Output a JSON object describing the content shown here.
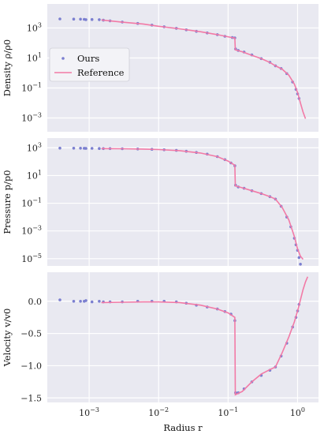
{
  "chart_data": {
    "type": "scatter",
    "xlabel": "Radius r",
    "x_scale": "log",
    "xlim": [
      0.00025,
      2.0
    ],
    "x_tick_labels": [
      "10^-3",
      "10^-2",
      "10^-1",
      "10^0"
    ],
    "legend": {
      "placement": "upper-left of first panel",
      "entries": [
        {
          "name": "Ours",
          "style": "dots",
          "color": "#7b7fd0"
        },
        {
          "name": "Reference",
          "style": "line",
          "color": "#f27aa6"
        }
      ]
    },
    "colors": {
      "ours": "#7b7fd0",
      "reference": "#f27aa6",
      "panel_bg": "#e9e9f1",
      "grid": "#ffffff"
    },
    "panels": [
      {
        "ylabel": "Density ρ/ρ0",
        "y_scale": "log",
        "ylim": [
          0.00012,
          40000
        ],
        "y_ticks": [
          0.001,
          0.1,
          10,
          1000
        ],
        "y_tick_labels": [
          "10^-3",
          "10^-1",
          "10^1",
          "10^3"
        ],
        "series": [
          {
            "name": "Ours",
            "points": [
              [
                0.00038,
                4000
              ],
              [
                0.0006,
                3900
              ],
              [
                0.00075,
                3850
              ],
              [
                0.00085,
                3750
              ],
              [
                0.0009,
                3600
              ],
              [
                0.0011,
                3700
              ],
              [
                0.0014,
                3600
              ],
              [
                0.0016,
                3300
              ],
              [
                0.002,
                3000
              ],
              [
                0.003,
                2500
              ],
              [
                0.005,
                2000
              ],
              [
                0.008,
                1550
              ],
              [
                0.012,
                1200
              ],
              [
                0.018,
                950
              ],
              [
                0.025,
                750
              ],
              [
                0.035,
                600
              ],
              [
                0.05,
                470
              ],
              [
                0.07,
                360
              ],
              [
                0.09,
                280
              ],
              [
                0.115,
                230
              ],
              [
                0.125,
                220
              ],
              [
                0.128,
                40
              ],
              [
                0.14,
                32
              ],
              [
                0.17,
                25
              ],
              [
                0.22,
                16
              ],
              [
                0.3,
                9
              ],
              [
                0.4,
                5.2
              ],
              [
                0.48,
                3.0
              ],
              [
                0.58,
                2.0
              ],
              [
                0.7,
                0.9
              ],
              [
                0.85,
                0.25
              ],
              [
                0.95,
                0.08
              ],
              [
                1.0,
                0.04
              ],
              [
                1.05,
                0.02
              ]
            ]
          },
          {
            "name": "Reference",
            "points": [
              [
                0.0015,
                3400
              ],
              [
                0.003,
                2450
              ],
              [
                0.006,
                1850
              ],
              [
                0.01,
                1300
              ],
              [
                0.02,
                880
              ],
              [
                0.04,
                560
              ],
              [
                0.07,
                360
              ],
              [
                0.1,
                260
              ],
              [
                0.125,
                210
              ],
              [
                0.127,
                35
              ],
              [
                0.16,
                26
              ],
              [
                0.22,
                15
              ],
              [
                0.3,
                9
              ],
              [
                0.4,
                5
              ],
              [
                0.48,
                3
              ],
              [
                0.6,
                1.8
              ],
              [
                0.75,
                0.7
              ],
              [
                0.9,
                0.18
              ],
              [
                1.0,
                0.05
              ],
              [
                1.1,
                0.01
              ],
              [
                1.2,
                0.0025
              ],
              [
                1.3,
                0.0009
              ]
            ]
          }
        ]
      },
      {
        "ylabel": "Pressure p/p0",
        "y_scale": "log",
        "ylim": [
          3e-06,
          5000
        ],
        "y_ticks": [
          1e-05,
          0.001,
          0.1,
          10,
          1000
        ],
        "y_tick_labels": [
          "10^-5",
          "10^-3",
          "10^-1",
          "10^1",
          "10^3"
        ],
        "series": [
          {
            "name": "Ours",
            "points": [
              [
                0.00038,
                950
              ],
              [
                0.0006,
                940
              ],
              [
                0.00075,
                930
              ],
              [
                0.00085,
                920
              ],
              [
                0.0009,
                900
              ],
              [
                0.0011,
                910
              ],
              [
                0.0014,
                890
              ],
              [
                0.0016,
                880
              ],
              [
                0.002,
                870
              ],
              [
                0.003,
                850
              ],
              [
                0.005,
                820
              ],
              [
                0.008,
                780
              ],
              [
                0.012,
                720
              ],
              [
                0.018,
                650
              ],
              [
                0.025,
                560
              ],
              [
                0.035,
                460
              ],
              [
                0.05,
                350
              ],
              [
                0.07,
                230
              ],
              [
                0.09,
                140
              ],
              [
                0.11,
                80
              ],
              [
                0.125,
                50
              ],
              [
                0.128,
                2.0
              ],
              [
                0.14,
                1.5
              ],
              [
                0.17,
                1.2
              ],
              [
                0.22,
                0.8
              ],
              [
                0.3,
                0.5
              ],
              [
                0.4,
                0.3
              ],
              [
                0.48,
                0.2
              ],
              [
                0.58,
                0.06
              ],
              [
                0.7,
                0.01
              ],
              [
                0.8,
                0.002
              ],
              [
                0.9,
                0.0003
              ],
              [
                0.95,
                0.0001
              ],
              [
                1.0,
                4e-05
              ],
              [
                1.05,
                1.2e-05
              ],
              [
                1.1,
                4e-06
              ]
            ]
          },
          {
            "name": "Reference",
            "points": [
              [
                0.0015,
                880
              ],
              [
                0.003,
                855
              ],
              [
                0.006,
                810
              ],
              [
                0.01,
                750
              ],
              [
                0.02,
                620
              ],
              [
                0.04,
                420
              ],
              [
                0.07,
                230
              ],
              [
                0.1,
                110
              ],
              [
                0.125,
                55
              ],
              [
                0.127,
                1.8
              ],
              [
                0.16,
                1.3
              ],
              [
                0.22,
                0.8
              ],
              [
                0.3,
                0.5
              ],
              [
                0.4,
                0.3
              ],
              [
                0.48,
                0.2
              ],
              [
                0.6,
                0.05
              ],
              [
                0.75,
                0.006
              ],
              [
                0.9,
                0.0004
              ],
              [
                1.0,
                5e-05
              ],
              [
                1.1,
                1.5e-05
              ],
              [
                1.2,
                9e-06
              ]
            ]
          }
        ]
      },
      {
        "ylabel": "Velocity v/v0",
        "y_scale": "linear",
        "ylim": [
          -1.57,
          0.45
        ],
        "y_ticks": [
          0.0,
          -0.5,
          -1.0,
          -1.5
        ],
        "y_tick_labels": [
          "0.0",
          "−0.5",
          "−1.0",
          "−1.5"
        ],
        "series": [
          {
            "name": "Ours",
            "points": [
              [
                0.00038,
                0.02
              ],
              [
                0.0006,
                0.0
              ],
              [
                0.00075,
                0.0
              ],
              [
                0.00085,
                0.0
              ],
              [
                0.0009,
                0.01
              ],
              [
                0.0011,
                -0.01
              ],
              [
                0.0014,
                0.0
              ],
              [
                0.0016,
                -0.01
              ],
              [
                0.002,
                -0.01
              ],
              [
                0.003,
                -0.01
              ],
              [
                0.005,
                0.0
              ],
              [
                0.008,
                0.0
              ],
              [
                0.012,
                0.0
              ],
              [
                0.018,
                -0.01
              ],
              [
                0.025,
                -0.03
              ],
              [
                0.035,
                -0.06
              ],
              [
                0.05,
                -0.09
              ],
              [
                0.07,
                -0.12
              ],
              [
                0.09,
                -0.16
              ],
              [
                0.11,
                -0.2
              ],
              [
                0.125,
                -0.3
              ],
              [
                0.128,
                -1.42
              ],
              [
                0.14,
                -1.42
              ],
              [
                0.17,
                -1.36
              ],
              [
                0.22,
                -1.25
              ],
              [
                0.3,
                -1.15
              ],
              [
                0.4,
                -1.07
              ],
              [
                0.48,
                -1.02
              ],
              [
                0.58,
                -0.85
              ],
              [
                0.7,
                -0.65
              ],
              [
                0.85,
                -0.4
              ],
              [
                0.95,
                -0.25
              ],
              [
                1.0,
                -0.15
              ],
              [
                1.05,
                -0.05
              ]
            ]
          },
          {
            "name": "Reference",
            "points": [
              [
                0.0015,
                -0.02
              ],
              [
                0.003,
                -0.015
              ],
              [
                0.006,
                -0.01
              ],
              [
                0.01,
                -0.01
              ],
              [
                0.02,
                -0.02
              ],
              [
                0.04,
                -0.06
              ],
              [
                0.07,
                -0.12
              ],
              [
                0.1,
                -0.18
              ],
              [
                0.125,
                -0.25
              ],
              [
                0.127,
                -1.45
              ],
              [
                0.16,
                -1.4
              ],
              [
                0.22,
                -1.25
              ],
              [
                0.3,
                -1.13
              ],
              [
                0.4,
                -1.06
              ],
              [
                0.48,
                -1.02
              ],
              [
                0.6,
                -0.8
              ],
              [
                0.75,
                -0.55
              ],
              [
                0.9,
                -0.32
              ],
              [
                1.0,
                -0.15
              ],
              [
                1.1,
                0.02
              ],
              [
                1.2,
                0.18
              ],
              [
                1.3,
                0.3
              ],
              [
                1.4,
                0.38
              ]
            ]
          }
        ]
      }
    ]
  }
}
